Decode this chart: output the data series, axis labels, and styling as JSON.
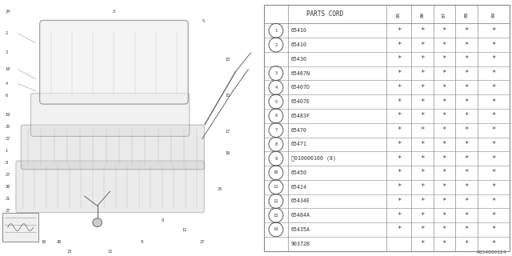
{
  "diagram_label": "A654000124",
  "bg_color": "#ffffff",
  "years": [
    "85",
    "86",
    "87",
    "88",
    "89"
  ],
  "rows": [
    {
      "num": "1",
      "circle": true,
      "code": "65410",
      "stars": [
        true,
        true,
        true,
        true,
        true
      ]
    },
    {
      "num": "2",
      "circle": true,
      "code": "65410",
      "stars": [
        true,
        true,
        true,
        true,
        true
      ]
    },
    {
      "num": "",
      "circle": false,
      "code": "65430",
      "stars": [
        true,
        true,
        true,
        true,
        true
      ]
    },
    {
      "num": "3",
      "circle": true,
      "code": "65467N",
      "stars": [
        true,
        true,
        true,
        true,
        true
      ]
    },
    {
      "num": "4",
      "circle": true,
      "code": "65407D",
      "stars": [
        true,
        true,
        true,
        true,
        true
      ]
    },
    {
      "num": "5",
      "circle": true,
      "code": "65407E",
      "stars": [
        true,
        true,
        true,
        true,
        true
      ]
    },
    {
      "num": "6",
      "circle": true,
      "code": "65483F",
      "stars": [
        true,
        true,
        true,
        true,
        true
      ]
    },
    {
      "num": "7",
      "circle": true,
      "code": "65470",
      "stars": [
        true,
        true,
        true,
        true,
        true
      ]
    },
    {
      "num": "8",
      "circle": true,
      "code": "65471",
      "stars": [
        true,
        true,
        true,
        true,
        true
      ]
    },
    {
      "num": "9",
      "circle": true,
      "code": "Ⓑ010006160 (8)",
      "stars": [
        true,
        true,
        true,
        true,
        true
      ]
    },
    {
      "num": "10",
      "circle": true,
      "code": "65450",
      "stars": [
        true,
        true,
        true,
        true,
        true
      ]
    },
    {
      "num": "11",
      "circle": true,
      "code": "65424",
      "stars": [
        true,
        true,
        true,
        true,
        true
      ]
    },
    {
      "num": "12",
      "circle": true,
      "code": "65434E",
      "stars": [
        true,
        true,
        true,
        true,
        true
      ]
    },
    {
      "num": "13",
      "circle": true,
      "code": "65484A",
      "stars": [
        true,
        true,
        true,
        true,
        true
      ]
    },
    {
      "num": "14",
      "circle": true,
      "code": "65435A",
      "stars": [
        true,
        true,
        true,
        true,
        true
      ]
    },
    {
      "num": "",
      "circle": false,
      "code": "90372B",
      "stars": [
        false,
        true,
        true,
        true,
        true
      ]
    }
  ],
  "col_props": [
    0.0,
    0.1,
    0.5,
    0.6,
    0.69,
    0.78,
    0.87,
    1.0
  ],
  "line_color": "#888888",
  "text_color": "#333333"
}
